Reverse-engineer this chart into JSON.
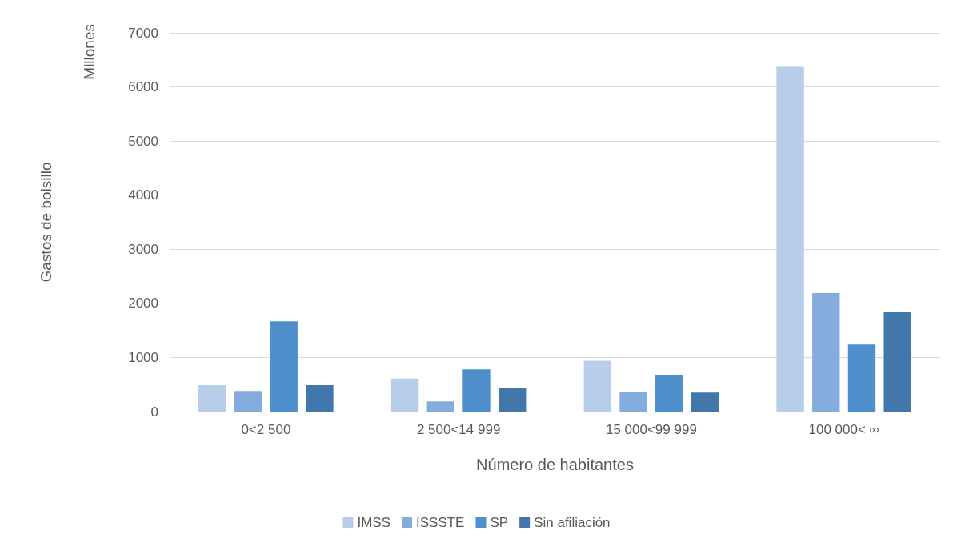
{
  "chart_data": {
    "type": "bar",
    "xlabel": "Número de habitantes",
    "ylabel": "Gastos de bolsillo",
    "annotations": [
      "Millones"
    ],
    "categories": [
      "0<2 500",
      "2 500<14 999",
      "15 000<99 999",
      "100 000< ∞"
    ],
    "series": [
      {
        "name": "IMSS",
        "color": "#b7cde9",
        "values": [
          490,
          610,
          940,
          6370
        ]
      },
      {
        "name": "ISSSTE",
        "color": "#84acdc",
        "values": [
          380,
          190,
          370,
          2190
        ]
      },
      {
        "name": "SP",
        "color": "#4f8fcb",
        "values": [
          1670,
          780,
          680,
          1240
        ]
      },
      {
        "name": "Sin afiliación",
        "color": "#4177aa",
        "values": [
          490,
          430,
          350,
          1840
        ]
      }
    ],
    "ylim": [
      0,
      7000
    ],
    "yticks": [
      0,
      1000,
      2000,
      3000,
      4000,
      5000,
      6000,
      7000
    ],
    "grid": "y",
    "legend": "bottom"
  }
}
